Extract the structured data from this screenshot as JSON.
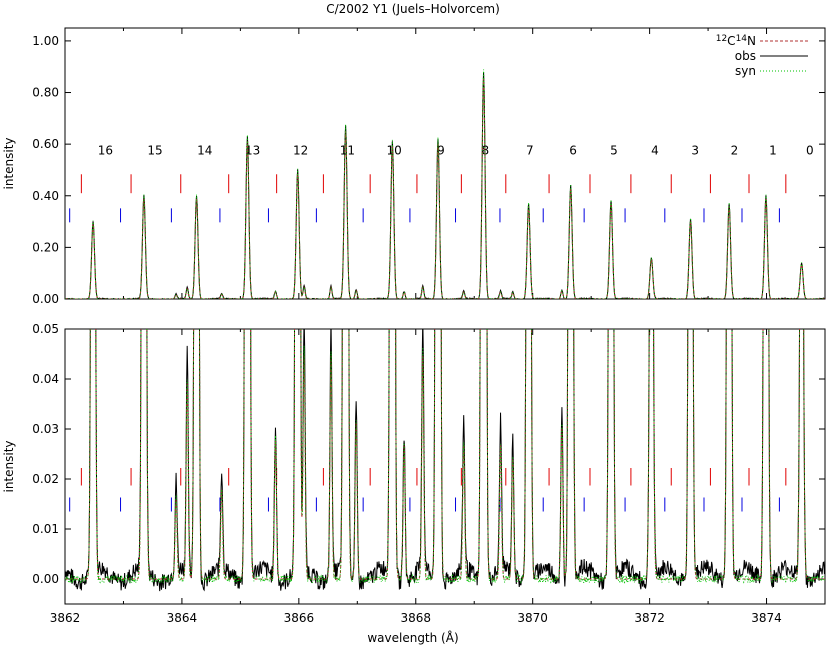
{
  "chart_data": {
    "type": "line",
    "title": "C/2002 Y1 (Juels–Holvorcem)",
    "xlabel": "wavelength (Å)",
    "ylabel": "intensity",
    "xlim": [
      3862,
      3875
    ],
    "x_ticks": [
      "3862",
      "3864",
      "3866",
      "3868",
      "3870",
      "3872",
      "3874"
    ],
    "colors": {
      "obs": "#000000",
      "syn": "#00c000",
      "model12C14N": "#b03030",
      "red_marker": "#e00000",
      "blue_marker": "#0000e0"
    },
    "legend": {
      "placement": "top-right",
      "entries": [
        {
          "name_prefix": "12",
          "name_mid": "C",
          "name_sup": "14",
          "name_suffix": "N",
          "style": "dashed",
          "color": "#b03030"
        },
        {
          "name": "obs",
          "style": "solid",
          "color": "#000000"
        },
        {
          "name": "syn",
          "style": "dotted",
          "color": "#00c000"
        }
      ]
    },
    "panels": [
      {
        "id": "top",
        "ylim": [
          0,
          1.05
        ],
        "y_ticks": [
          "0.00",
          "0.20",
          "0.40",
          "0.60",
          "0.80",
          "1.00"
        ]
      },
      {
        "id": "bottom",
        "ylim": [
          -0.005,
          0.05
        ],
        "y_ticks": [
          "0.00",
          "0.01",
          "0.02",
          "0.03",
          "0.04",
          "0.05"
        ]
      }
    ],
    "rotational_lines": [
      {
        "label": "16",
        "x": 3862.48,
        "obs": 0.3
      },
      {
        "label": "15",
        "x": 3863.35,
        "obs": 0.4
      },
      {
        "label": "14",
        "x": 3864.25,
        "obs": 0.4
      },
      {
        "label": "13",
        "x": 3865.12,
        "obs": 0.63
      },
      {
        "label": "12",
        "x": 3865.98,
        "obs": 0.5
      },
      {
        "label": "11",
        "x": 3866.8,
        "obs": 0.67
      },
      {
        "label": "10",
        "x": 3867.6,
        "obs": 0.61
      },
      {
        "label": "9",
        "x": 3868.38,
        "obs": 0.62
      },
      {
        "label": "8",
        "x": 3869.16,
        "obs": 0.88
      },
      {
        "label": "7",
        "x": 3869.93,
        "obs": 0.37
      },
      {
        "label": "6",
        "x": 3870.65,
        "obs": 0.44
      },
      {
        "label": "5",
        "x": 3871.34,
        "obs": 0.38
      },
      {
        "label": "4",
        "x": 3872.03,
        "obs": 0.16
      },
      {
        "label": "3",
        "x": 3872.7,
        "obs": 0.31
      },
      {
        "label": "2",
        "x": 3873.36,
        "obs": 0.37
      },
      {
        "label": "1",
        "x": 3873.99,
        "obs": 0.4
      },
      {
        "label": "0",
        "x": 3874.6,
        "obs": 0.14
      }
    ],
    "weak_lines": [
      {
        "x": 3864.09,
        "obs": 0.044
      },
      {
        "x": 3863.9,
        "obs": 0.018
      },
      {
        "x": 3864.68,
        "obs": 0.02
      },
      {
        "x": 3865.6,
        "obs": 0.031
      },
      {
        "x": 3866.09,
        "obs": 0.05
      },
      {
        "x": 3866.55,
        "obs": 0.05
      },
      {
        "x": 3866.98,
        "obs": 0.035
      },
      {
        "x": 3867.8,
        "obs": 0.03
      },
      {
        "x": 3868.12,
        "obs": 0.05
      },
      {
        "x": 3868.82,
        "obs": 0.03
      },
      {
        "x": 3869.45,
        "obs": 0.03
      },
      {
        "x": 3869.66,
        "obs": 0.027
      },
      {
        "x": 3870.5,
        "obs": 0.034
      }
    ],
    "markers_red_x": [
      3862.28,
      3863.13,
      3863.98,
      3864.8,
      3865.62,
      3866.42,
      3867.22,
      3868.02,
      3868.78,
      3869.54,
      3870.28,
      3870.98,
      3871.68,
      3872.37,
      3873.04,
      3873.7,
      3874.33
    ],
    "markers_blue_x": [
      3862.08,
      3862.95,
      3863.82,
      3864.65,
      3865.48,
      3866.3,
      3867.1,
      3867.9,
      3868.68,
      3869.44,
      3870.18,
      3870.88,
      3871.58,
      3872.26,
      3872.93,
      3873.58,
      3874.22
    ]
  }
}
